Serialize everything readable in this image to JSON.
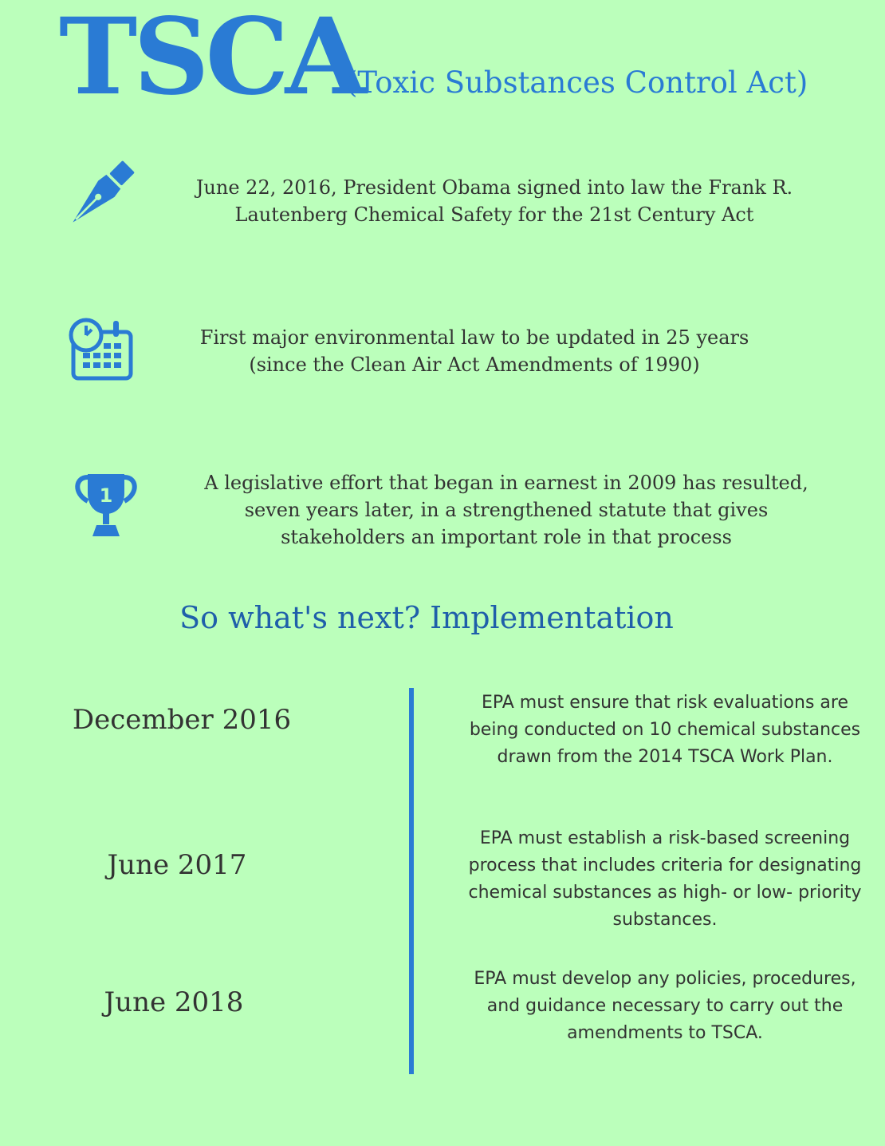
{
  "header": {
    "title": "TSCA",
    "subtitle": "(Toxic Substances Control Act)"
  },
  "colors": {
    "background": "#bbffbb",
    "accent": "#2a7bd4",
    "heading": "#1f5faa",
    "text": "#333333"
  },
  "facts": [
    {
      "icon": "fountain-pen-icon",
      "lines": [
        "June 22, 2016, President Obama signed into law the Frank R.",
        "Lautenberg Chemical Safety for the 21st Century Act"
      ]
    },
    {
      "icon": "calendar-clock-icon",
      "lines": [
        "First major environmental law to be updated in 25 years",
        "(since the Clean Air Act Amendments of 1990)"
      ]
    },
    {
      "icon": "trophy-icon",
      "trophy_number": "1",
      "lines": [
        "A legislative effort that began in earnest in 2009 has resulted,",
        "seven years later, in a strengthened statute that gives",
        "stakeholders an important role in that process"
      ]
    }
  ],
  "next": {
    "heading": "So what's next? Implementation"
  },
  "timeline": [
    {
      "date": "December 2016",
      "lines": [
        "EPA must ensure that risk evaluations are",
        "being conducted on 10 chemical substances",
        "drawn from the 2014 TSCA Work Plan."
      ]
    },
    {
      "date": "June 2017",
      "lines": [
        "EPA must establish a risk-based screening",
        "process that includes criteria for designating",
        "chemical substances as high- or low- priority",
        "substances."
      ]
    },
    {
      "date": "June 2018",
      "lines": [
        "EPA must develop any policies, procedures,",
        "and guidance necessary to carry out the",
        "amendments to TSCA."
      ]
    }
  ]
}
